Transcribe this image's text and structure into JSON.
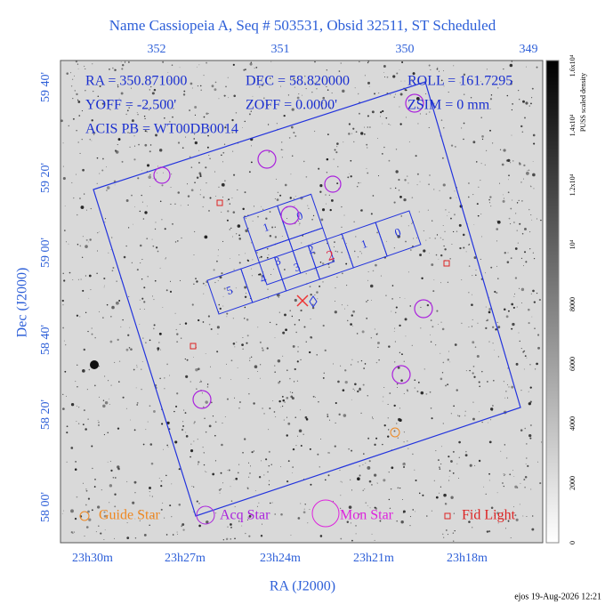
{
  "title": "Name Cassiopeia A, Seq # 503531, Obsid 32511, ST Scheduled",
  "header": [
    [
      "RA = 350.871000",
      "DEC = 58.820000",
      "ROLL = 161.7295"
    ],
    [
      "YOFF = -2.500'",
      "ZOFF = 0.0000'",
      "ZSIM = 0 mm"
    ],
    [
      "ACIS PB = WT00DB0014"
    ]
  ],
  "x_top_ticks": [
    "352",
    "351",
    "350",
    "349"
  ],
  "x_bottom_ticks": [
    "23h30m",
    "23h27m",
    "23h24m",
    "23h21m",
    "23h18m"
  ],
  "y_ticks": [
    "59 40'",
    "59 20'",
    "59 00'",
    "58 40'",
    "58 20'",
    "58 00'"
  ],
  "x_label": "RA (J2000)",
  "y_label": "Dec (J2000)",
  "colorbar_ticks": [
    "0",
    "2000",
    "4000",
    "6000",
    "8000",
    "10⁴",
    "1.2x10⁴",
    "1.4x10⁴",
    "1.6x10⁴"
  ],
  "colorbar_label": "PUSS scaled density",
  "acis_i_chips": [
    "1",
    "0",
    "3",
    "2"
  ],
  "acis_s_chips": [
    "5",
    "4",
    "3",
    "2",
    "1",
    "0"
  ],
  "legend": [
    "Guide Star",
    "Acq Star",
    "Mon Star",
    "Fid Light"
  ],
  "footer": "ejos 19-Aug-2026 12:21"
}
